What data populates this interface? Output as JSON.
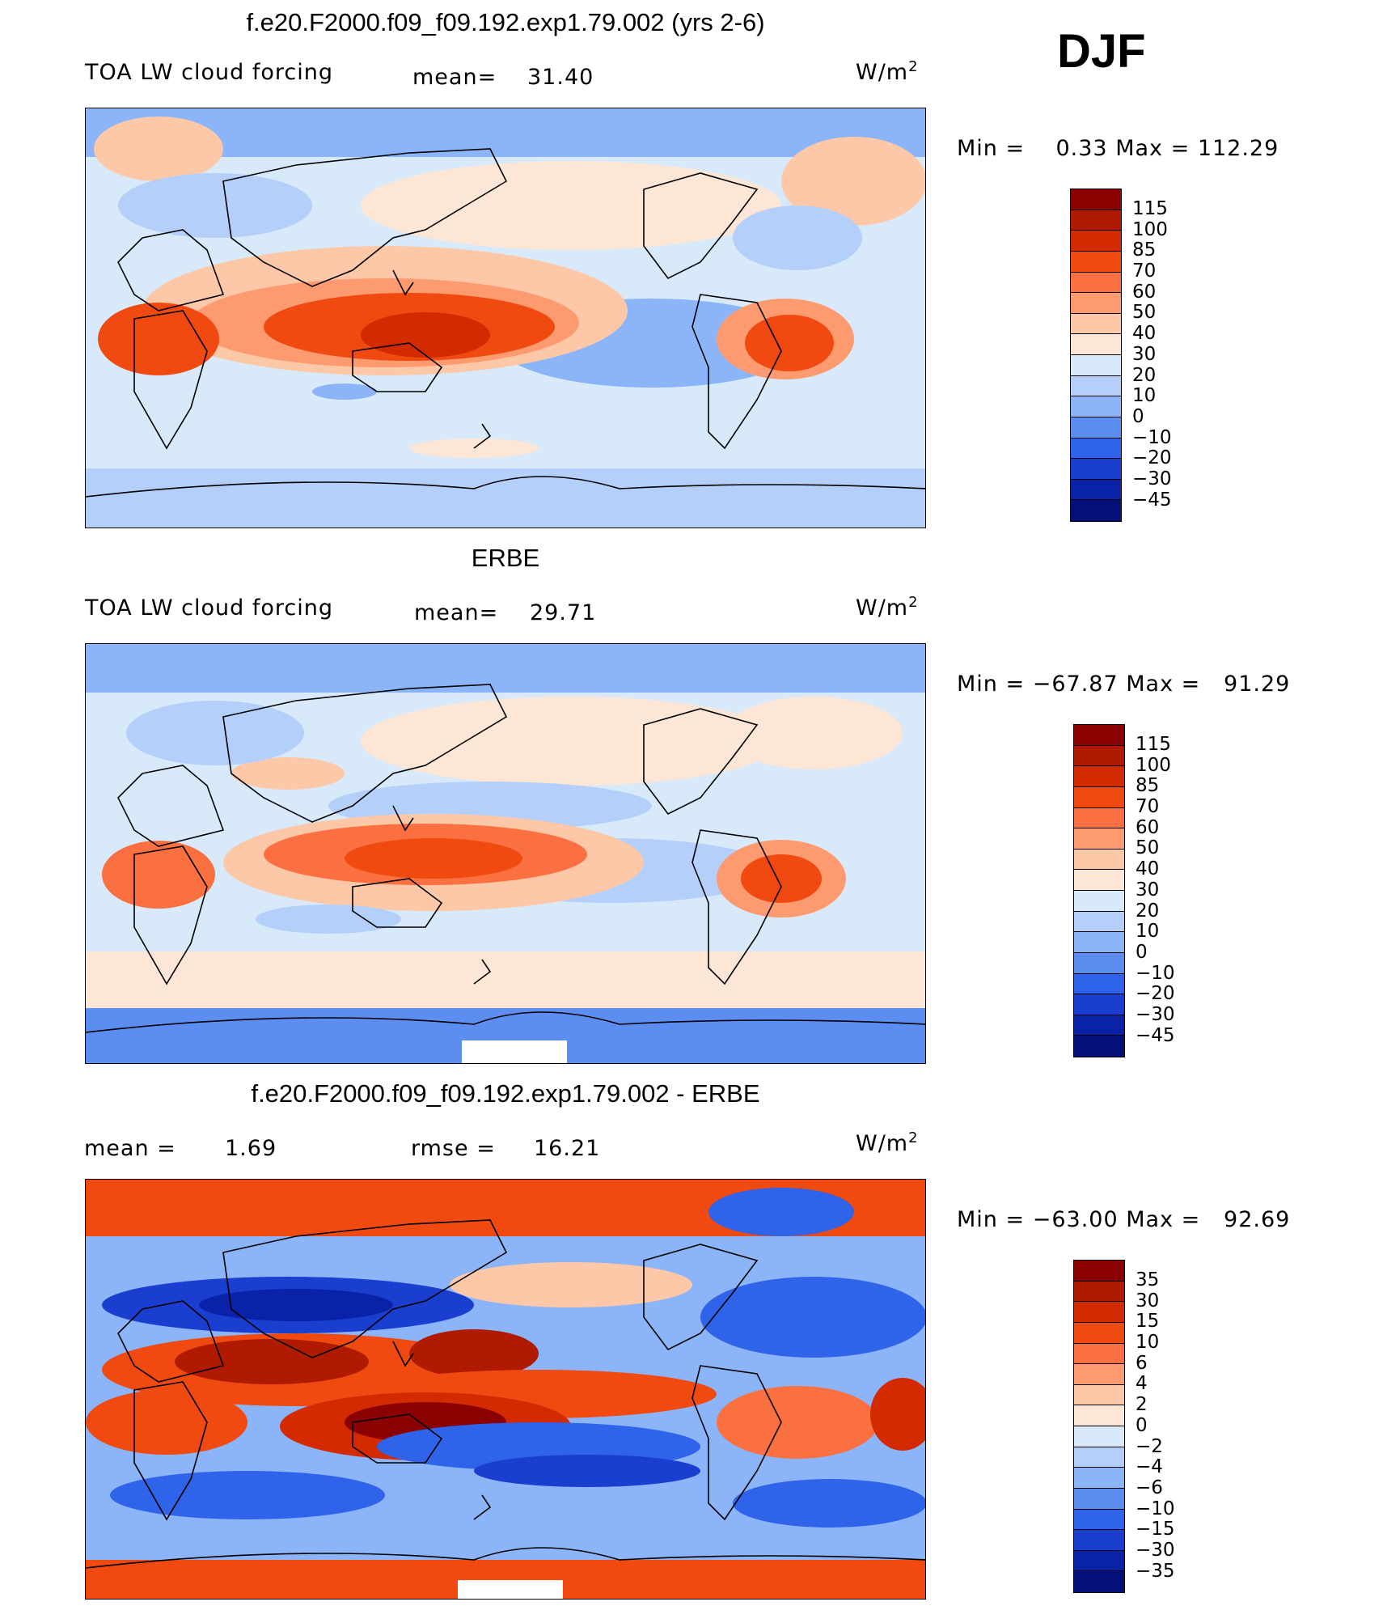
{
  "header": {
    "season": "DJF"
  },
  "panels": [
    {
      "id": "model",
      "title": "f.e20.F2000.f09_f09.192.exp1.79.002 (yrs 2-6)",
      "left_label": "TOA LW cloud forcing",
      "mean_label": "mean=",
      "mean_value": "31.40",
      "units": "W/m",
      "units_exp": "2",
      "minmax": {
        "min_label": "Min =",
        "min_value": "0.33",
        "max_label": "Max =",
        "max_value": "112.29"
      },
      "colorbar": {
        "labels": [
          "115",
          "100",
          "85",
          "70",
          "60",
          "50",
          "40",
          "30",
          "20",
          "10",
          "0",
          "−10",
          "−20",
          "−30",
          "−45"
        ],
        "colors": [
          "#8b0000",
          "#b01a00",
          "#d42a00",
          "#f04a10",
          "#fa7040",
          "#fd9a70",
          "#fdc8a8",
          "#fde6d6",
          "#d8eafa",
          "#b4d0fa",
          "#8cb4f8",
          "#5c8ef2",
          "#2f63ea",
          "#1a3ed0",
          "#0a22a8",
          "#050f78"
        ]
      }
    },
    {
      "id": "obs",
      "title": "ERBE",
      "left_label": "TOA LW cloud forcing",
      "mean_label": "mean=",
      "mean_value": "29.71",
      "units": "W/m",
      "units_exp": "2",
      "minmax": {
        "min_label": "Min =",
        "min_value": "−67.87",
        "max_label": "Max =",
        "max_value": "91.29"
      },
      "colorbar": {
        "labels": [
          "115",
          "100",
          "85",
          "70",
          "60",
          "50",
          "40",
          "30",
          "20",
          "10",
          "0",
          "−10",
          "−20",
          "−30",
          "−45"
        ],
        "colors": [
          "#8b0000",
          "#b01a00",
          "#d42a00",
          "#f04a10",
          "#fa7040",
          "#fd9a70",
          "#fdc8a8",
          "#fde6d6",
          "#d8eafa",
          "#b4d0fa",
          "#8cb4f8",
          "#5c8ef2",
          "#2f63ea",
          "#1a3ed0",
          "#0a22a8",
          "#050f78"
        ]
      }
    },
    {
      "id": "diff",
      "title": "f.e20.F2000.f09_f09.192.exp1.79.002 - ERBE",
      "mean_label": "mean =",
      "mean_value": "1.69",
      "rmse_label": "rmse =",
      "rmse_value": "16.21",
      "units": "W/m",
      "units_exp": "2",
      "minmax": {
        "min_label": "Min =",
        "min_value": "−63.00",
        "max_label": "Max =",
        "max_value": "92.69"
      },
      "colorbar": {
        "labels": [
          "35",
          "30",
          "15",
          "10",
          "6",
          "4",
          "2",
          "0",
          "−2",
          "−4",
          "−6",
          "−10",
          "−15",
          "−30",
          "−35"
        ],
        "colors": [
          "#8b0000",
          "#b01a00",
          "#d42a00",
          "#f04a10",
          "#fa7040",
          "#fd9a70",
          "#fdc8a8",
          "#fde6d6",
          "#d8eafa",
          "#b4d0fa",
          "#8cb4f8",
          "#5c8ef2",
          "#2f63ea",
          "#1a3ed0",
          "#0a22a8",
          "#050f78"
        ]
      }
    }
  ]
}
